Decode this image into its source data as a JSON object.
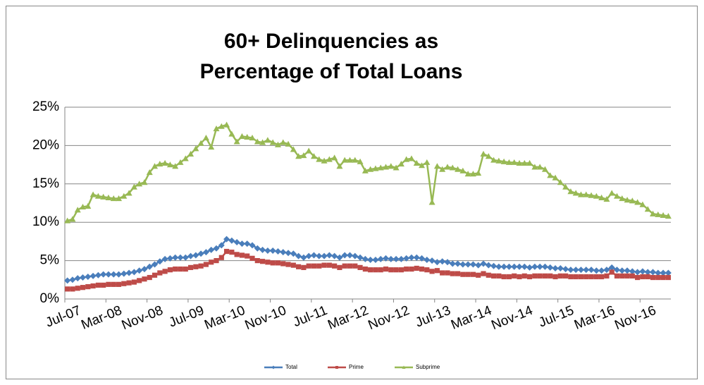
{
  "chart_data": {
    "type": "line",
    "title": [
      "60+ Delinquencies as",
      "Percentage of Total Loans"
    ],
    "categories": [
      "Jul-07",
      null,
      null,
      null,
      null,
      null,
      null,
      null,
      "Mar-08",
      null,
      null,
      null,
      null,
      null,
      null,
      null,
      "Nov-08",
      null,
      null,
      null,
      null,
      null,
      null,
      null,
      "Jul-09",
      null,
      null,
      null,
      null,
      null,
      null,
      null,
      "Mar-10",
      null,
      null,
      null,
      null,
      null,
      null,
      null,
      "Nov-10",
      null,
      null,
      null,
      null,
      null,
      null,
      null,
      "Jul-11",
      null,
      null,
      null,
      null,
      null,
      null,
      null,
      "Mar-12",
      null,
      null,
      null,
      null,
      null,
      null,
      null,
      "Nov-12",
      null,
      null,
      null,
      null,
      null,
      null,
      null,
      "Jul-13",
      null,
      null,
      null,
      null,
      null,
      null,
      null,
      "Mar-14",
      null,
      null,
      null,
      null,
      null,
      null,
      null,
      "Nov-14",
      null,
      null,
      null,
      null,
      null,
      null,
      null,
      "Jul-15",
      null,
      null,
      null,
      null,
      null,
      null,
      null,
      "Mar-16",
      null,
      null,
      null,
      null,
      null,
      null,
      null,
      "Nov-16",
      null,
      null,
      null,
      null,
      null
    ],
    "series": [
      {
        "name": "Total",
        "color": "#4a7ebb",
        "marker": "diamond",
        "values": [
          2.4,
          2.5,
          2.7,
          2.8,
          2.9,
          3.0,
          3.1,
          3.2,
          3.2,
          3.2,
          3.2,
          3.3,
          3.4,
          3.5,
          3.7,
          3.9,
          4.2,
          4.5,
          4.9,
          5.2,
          5.3,
          5.4,
          5.4,
          5.4,
          5.6,
          5.7,
          5.9,
          6.1,
          6.4,
          6.6,
          7.0,
          7.8,
          7.6,
          7.4,
          7.2,
          7.2,
          7.0,
          6.6,
          6.4,
          6.3,
          6.3,
          6.2,
          6.1,
          6.0,
          5.9,
          5.6,
          5.4,
          5.6,
          5.7,
          5.6,
          5.6,
          5.7,
          5.6,
          5.4,
          5.7,
          5.7,
          5.6,
          5.4,
          5.2,
          5.1,
          5.1,
          5.2,
          5.3,
          5.2,
          5.2,
          5.2,
          5.3,
          5.4,
          5.4,
          5.3,
          5.1,
          5.0,
          4.8,
          4.9,
          4.8,
          4.6,
          4.6,
          4.5,
          4.5,
          4.5,
          4.4,
          4.6,
          4.4,
          4.3,
          4.2,
          4.2,
          4.2,
          4.2,
          4.2,
          4.2,
          4.1,
          4.2,
          4.2,
          4.2,
          4.1,
          4.0,
          4.0,
          3.9,
          3.8,
          3.8,
          3.8,
          3.8,
          3.8,
          3.7,
          3.7,
          3.8,
          4.1,
          3.8,
          3.7,
          3.7,
          3.6,
          3.5,
          3.6,
          3.5,
          3.5,
          3.4,
          3.4,
          3.4
        ]
      },
      {
        "name": "Prime",
        "color": "#be4b48",
        "marker": "square",
        "values": [
          1.3,
          1.3,
          1.4,
          1.5,
          1.6,
          1.7,
          1.8,
          1.8,
          1.9,
          1.9,
          1.9,
          2.0,
          2.1,
          2.2,
          2.4,
          2.6,
          2.8,
          3.1,
          3.4,
          3.6,
          3.8,
          3.9,
          3.9,
          3.9,
          4.1,
          4.2,
          4.3,
          4.5,
          4.8,
          5.0,
          5.4,
          6.2,
          6.1,
          5.8,
          5.7,
          5.6,
          5.3,
          5.0,
          4.9,
          4.8,
          4.7,
          4.7,
          4.6,
          4.5,
          4.4,
          4.2,
          4.1,
          4.3,
          4.3,
          4.3,
          4.4,
          4.4,
          4.3,
          4.1,
          4.3,
          4.3,
          4.3,
          4.1,
          3.9,
          3.8,
          3.8,
          3.8,
          3.9,
          3.8,
          3.8,
          3.8,
          3.9,
          3.9,
          4.0,
          3.9,
          3.8,
          3.6,
          3.7,
          3.4,
          3.4,
          3.3,
          3.3,
          3.2,
          3.2,
          3.2,
          3.1,
          3.3,
          3.1,
          3.0,
          3.0,
          2.9,
          2.9,
          3.0,
          2.9,
          3.0,
          2.9,
          3.0,
          3.0,
          3.0,
          3.0,
          2.9,
          3.0,
          3.0,
          2.9,
          2.9,
          2.9,
          2.9,
          2.9,
          2.9,
          2.9,
          3.0,
          3.5,
          3.0,
          3.0,
          3.0,
          3.0,
          2.8,
          2.9,
          2.9,
          2.8,
          2.8,
          2.8,
          2.8
        ]
      },
      {
        "name": "Subprime",
        "color": "#98b954",
        "marker": "triangle",
        "values": [
          10.2,
          10.4,
          11.6,
          12.0,
          12.1,
          13.6,
          13.4,
          13.3,
          13.2,
          13.1,
          13.1,
          13.4,
          13.8,
          14.6,
          15.0,
          15.2,
          16.5,
          17.3,
          17.6,
          17.7,
          17.5,
          17.3,
          17.8,
          18.3,
          18.9,
          19.6,
          20.3,
          21.0,
          19.8,
          22.2,
          22.5,
          22.7,
          21.5,
          20.5,
          21.2,
          21.1,
          21.0,
          20.5,
          20.4,
          20.7,
          20.4,
          20.1,
          20.4,
          20.2,
          19.5,
          18.6,
          18.7,
          19.3,
          18.6,
          18.2,
          18.0,
          18.2,
          18.4,
          17.3,
          18.1,
          18.1,
          18.1,
          17.9,
          16.7,
          16.9,
          17.0,
          17.1,
          17.2,
          17.3,
          17.1,
          17.6,
          18.2,
          18.3,
          17.7,
          17.4,
          17.8,
          12.6,
          17.3,
          16.9,
          17.2,
          17.1,
          16.9,
          16.7,
          16.3,
          16.3,
          16.4,
          18.9,
          18.6,
          18.1,
          18.0,
          17.9,
          17.8,
          17.8,
          17.7,
          17.7,
          17.7,
          17.2,
          17.2,
          16.9,
          16.1,
          15.8,
          15.2,
          14.6,
          14.0,
          13.8,
          13.6,
          13.6,
          13.5,
          13.4,
          13.2,
          13.0,
          13.8,
          13.4,
          13.1,
          12.9,
          12.8,
          12.6,
          12.3,
          11.7,
          11.1,
          11.0,
          10.9,
          10.8
        ]
      }
    ],
    "ylim": [
      0,
      25
    ],
    "yticks": [
      {
        "value": 0,
        "label": "0%"
      },
      {
        "value": 5,
        "label": "5%"
      },
      {
        "value": 10,
        "label": "10%"
      },
      {
        "value": 15,
        "label": "15%"
      },
      {
        "value": 20,
        "label": "20%"
      },
      {
        "value": 25,
        "label": "25%"
      }
    ],
    "grid": true,
    "legend": "bottom"
  }
}
